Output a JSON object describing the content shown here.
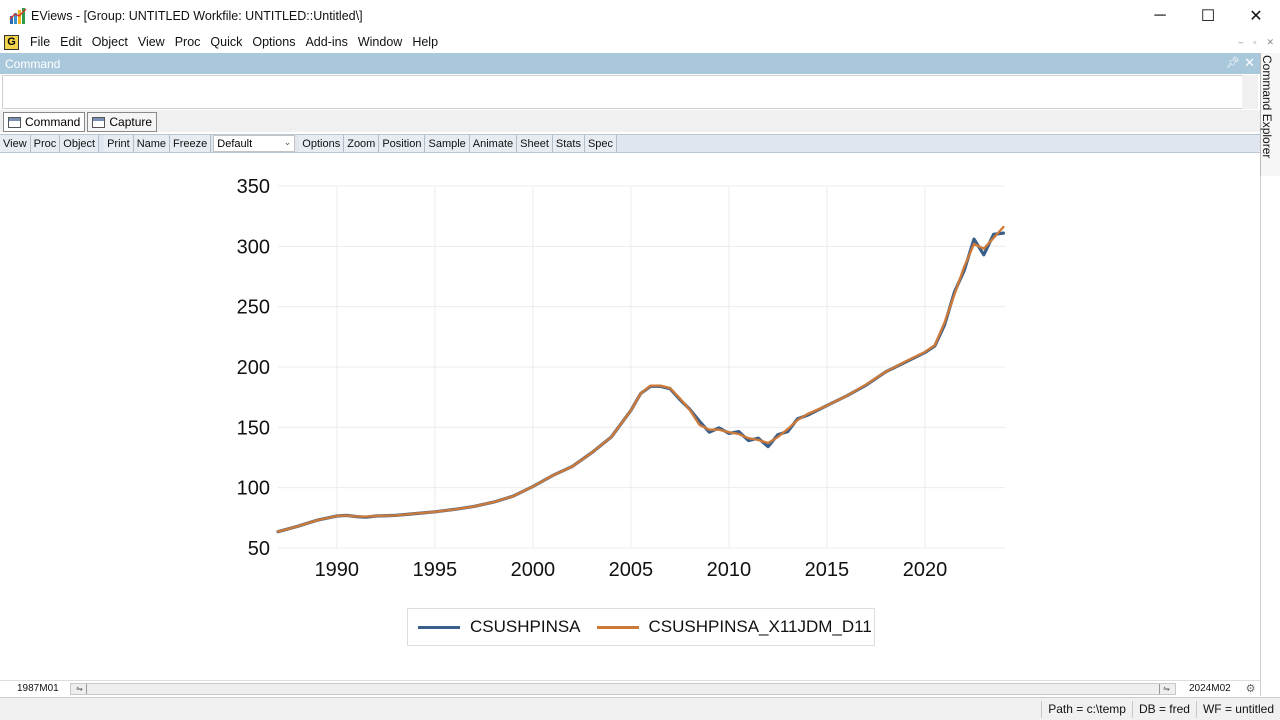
{
  "window": {
    "title": "EViews - [Group: UNTITLED    Workfile: UNTITLED::Untitled\\]",
    "minimize": "─",
    "maximize": "☐",
    "close": "✕"
  },
  "menu": {
    "app_badge": "G",
    "items": [
      "File",
      "Edit",
      "Object",
      "View",
      "Proc",
      "Quick",
      "Options",
      "Add-ins",
      "Window",
      "Help"
    ],
    "mdi_minimize": "‒",
    "mdi_restore": "▫",
    "mdi_close": "✕"
  },
  "command_pane": {
    "title": "Command",
    "value": "",
    "tabs": [
      "Command",
      "Capture"
    ]
  },
  "explorer": {
    "label": "Command Explorer"
  },
  "object_toolbar": {
    "group1": [
      "View",
      "Proc",
      "Object"
    ],
    "group2": [
      "Print",
      "Name",
      "Freeze"
    ],
    "select_value": "Default",
    "group3": [
      "Options",
      "Zoom",
      "Position",
      "Sample",
      "Animate",
      "Sheet",
      "Stats",
      "Spec"
    ]
  },
  "colors": {
    "series1": "#3a5f8a",
    "series2": "#cc7a3a",
    "header": "#a9c8dc"
  },
  "chart_data": {
    "type": "line",
    "title": "",
    "xlabel": "",
    "ylabel": "",
    "xlim": [
      1987.0,
      2024.083
    ],
    "ylim": [
      50,
      350
    ],
    "yticks": [
      "350",
      "300",
      "250",
      "200",
      "150",
      "100",
      "50"
    ],
    "xticks": [
      "1990",
      "1995",
      "2000",
      "2005",
      "2010",
      "2015",
      "2020"
    ],
    "grid": true,
    "legend_position": "bottom",
    "series": [
      {
        "name": "CSUSHPINSA",
        "x": [
          1987.0,
          1988.0,
          1989.0,
          1990.0,
          1990.5,
          1991.0,
          1991.5,
          1992.0,
          1993.0,
          1994.0,
          1995.0,
          1996.0,
          1997.0,
          1998.0,
          1999.0,
          2000.0,
          2001.0,
          2002.0,
          2003.0,
          2004.0,
          2005.0,
          2005.5,
          2006.0,
          2006.5,
          2007.0,
          2007.5,
          2008.0,
          2008.5,
          2009.0,
          2009.5,
          2010.0,
          2010.5,
          2011.0,
          2011.5,
          2012.0,
          2012.5,
          2013.0,
          2013.5,
          2014.0,
          2015.0,
          2016.0,
          2017.0,
          2018.0,
          2019.0,
          2020.0,
          2020.5,
          2021.0,
          2021.5,
          2022.0,
          2022.5,
          2023.0,
          2023.5,
          2024.0
        ],
        "values": [
          63.5,
          68.0,
          73.0,
          76.5,
          77.0,
          76.0,
          75.5,
          76.5,
          77.0,
          78.5,
          80.0,
          82.0,
          84.5,
          88.0,
          93.0,
          101.0,
          110.0,
          117.5,
          129.0,
          142.0,
          164.0,
          178.0,
          184.0,
          184.0,
          182.0,
          173.0,
          165.0,
          155.0,
          146.0,
          149.5,
          145.0,
          146.5,
          139.0,
          141.0,
          134.0,
          144.0,
          146.5,
          157.0,
          160.0,
          168.0,
          176.0,
          185.0,
          196.0,
          204.0,
          212.0,
          217.5,
          235.0,
          262.0,
          280.0,
          306.0,
          293.0,
          310.0,
          311.0
        ]
      },
      {
        "name": "CSUSHPINSA_X11JDM_D11",
        "x": [
          1987.0,
          1988.0,
          1989.0,
          1990.0,
          1990.5,
          1991.0,
          1991.5,
          1992.0,
          1993.0,
          1994.0,
          1995.0,
          1996.0,
          1997.0,
          1998.0,
          1999.0,
          2000.0,
          2001.0,
          2002.0,
          2003.0,
          2004.0,
          2005.0,
          2005.5,
          2006.0,
          2006.5,
          2007.0,
          2007.5,
          2008.0,
          2008.5,
          2009.0,
          2009.5,
          2010.0,
          2010.5,
          2011.0,
          2011.5,
          2012.0,
          2012.5,
          2013.0,
          2013.5,
          2014.0,
          2015.0,
          2016.0,
          2017.0,
          2018.0,
          2019.0,
          2020.0,
          2020.5,
          2021.0,
          2021.5,
          2022.0,
          2022.5,
          2023.0,
          2023.5,
          2024.0
        ],
        "values": [
          63.5,
          68.0,
          73.0,
          76.5,
          77.0,
          76.0,
          76.0,
          76.5,
          77.0,
          78.5,
          80.0,
          82.0,
          84.5,
          88.0,
          93.0,
          101.0,
          110.0,
          117.5,
          129.0,
          142.0,
          164.0,
          178.0,
          184.5,
          184.5,
          182.5,
          174.0,
          164.5,
          152.0,
          148.0,
          148.0,
          146.0,
          144.5,
          141.0,
          139.5,
          137.0,
          142.0,
          148.5,
          156.0,
          161.0,
          168.0,
          176.0,
          185.5,
          196.0,
          204.5,
          212.5,
          218.0,
          237.0,
          260.0,
          283.0,
          302.0,
          298.0,
          307.0,
          316.0
        ]
      }
    ]
  },
  "sample": {
    "start": "1987M01",
    "end": "2024M02"
  },
  "status": {
    "path": "Path = c:\\temp",
    "db": "DB = fred",
    "wf": "WF = untitled"
  }
}
